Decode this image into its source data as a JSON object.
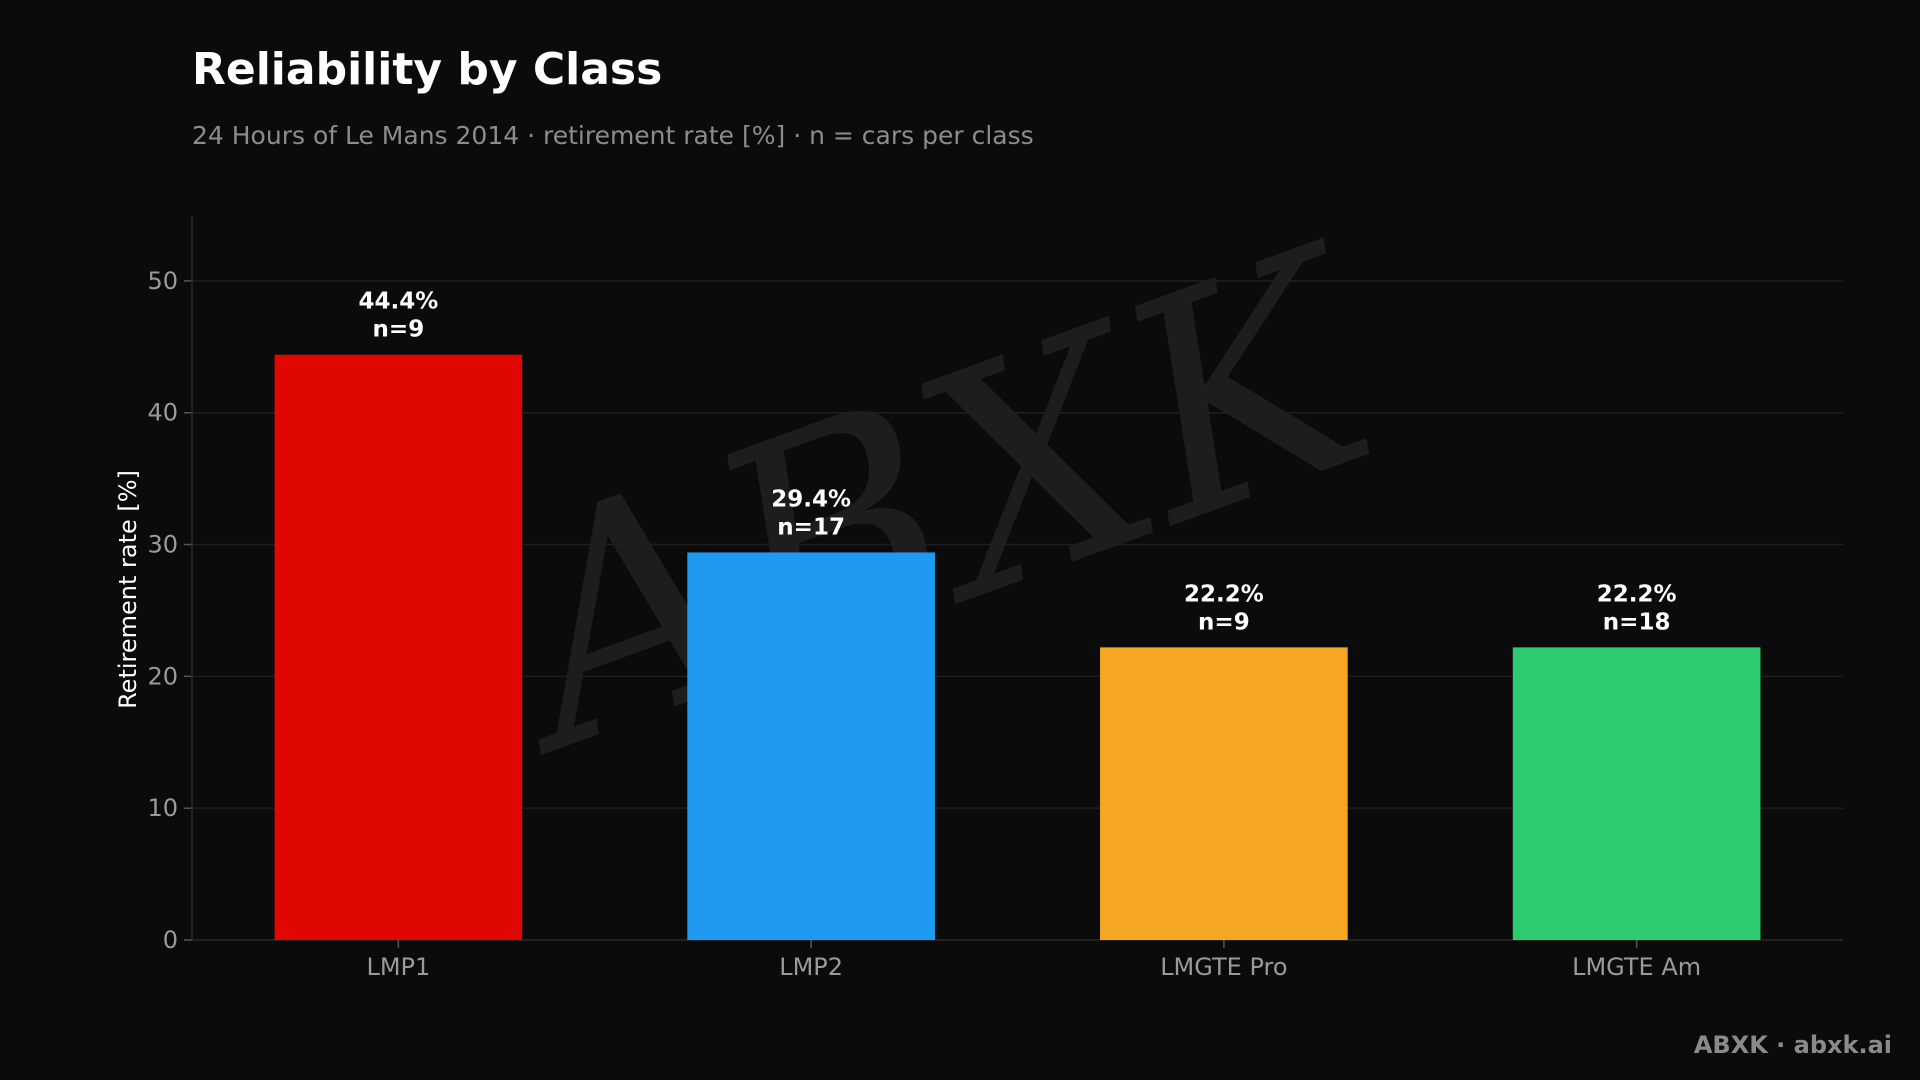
{
  "header": {
    "title": "Reliability by Class",
    "subtitle": "24 Hours of Le Mans 2014 · retirement rate [%] · n = cars per class"
  },
  "footer": {
    "brand": "ABXK · abxk.ai"
  },
  "watermark": {
    "text": "ABXK"
  },
  "colors": {
    "background": "#0b0b0b",
    "grid": "#1f1f1f",
    "axis": "#2a2a2a"
  },
  "chart_data": {
    "type": "bar",
    "title": "Reliability by Class",
    "subtitle": "24 Hours of Le Mans 2014 · retirement rate [%] · n = cars per class",
    "xlabel": "",
    "ylabel": "Retirement rate [%]",
    "ylim": [
      0,
      55
    ],
    "yticks": [
      0,
      10,
      20,
      30,
      40,
      50
    ],
    "grid": true,
    "categories": [
      "LMP1",
      "LMP2",
      "LMGTE Pro",
      "LMGTE Am"
    ],
    "values": [
      44.4,
      29.4,
      22.2,
      22.2
    ],
    "counts": [
      "n=9",
      "n=17",
      "n=9",
      "n=18"
    ],
    "value_labels": [
      "44.4%",
      "29.4%",
      "22.2%",
      "22.2%"
    ],
    "bar_colors": [
      "#e00700",
      "#1e9bf0",
      "#f5a623",
      "#2ecc71"
    ]
  }
}
